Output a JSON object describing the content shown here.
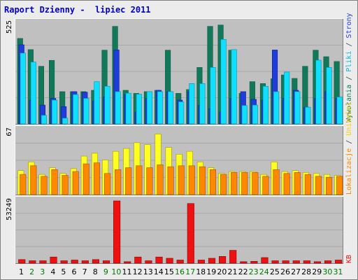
{
  "title": "Raport Dzienny -  lipiec 2011",
  "colors": {
    "background": "#ececec",
    "panel": "#c0c0c0",
    "wizyty": "#11795a",
    "strony": "#1f3ddc",
    "pliki": "#10e0ff",
    "pliki_edge": "#0095b0",
    "lokalizacje": "#ff8800",
    "unikalni": "#ffff22",
    "kb": "#ee1111",
    "weekend_label": "#007700",
    "weekday_label": "#000000"
  },
  "chart_data": [
    {
      "type": "bar",
      "y_top_label": "525",
      "categories": [
        "1",
        "2",
        "3",
        "4",
        "5",
        "6",
        "7",
        "8",
        "9",
        "10",
        "11",
        "12",
        "13",
        "14",
        "15",
        "16",
        "17",
        "18",
        "19",
        "20",
        "21",
        "22",
        "23",
        "24",
        "25",
        "26",
        "27",
        "28",
        "29",
        "30",
        "31"
      ],
      "weekend_days": [
        "2",
        "3",
        "9",
        "10",
        "16",
        "17",
        "23",
        "24",
        "30",
        "31"
      ],
      "ylim": [
        0,
        525
      ],
      "right_labels": [
        {
          "text": "Wywołania",
          "color": "#11795a"
        },
        {
          "text": " / ",
          "color": "#444444"
        },
        {
          "text": "Pliki",
          "color": "#10b8d8"
        },
        {
          "text": " / ",
          "color": "#444444"
        },
        {
          "text": "Strony",
          "color": "#1f3ddc"
        }
      ],
      "series": [
        {
          "name": "Wywołania",
          "values": [
            445,
            387,
            300,
            331,
            168,
            168,
            168,
            175,
            384,
            508,
            175,
            159,
            168,
            175,
            384,
            159,
            179,
            294,
            508,
            515,
            384,
            159,
            220,
            210,
            235,
            255,
            237,
            300,
            384,
            350,
            325
          ]
        },
        {
          "name": "Strony",
          "values": [
            412,
            124,
            98,
            133,
            90,
            168,
            165,
            120,
            140,
            385,
            153,
            62,
            133,
            175,
            168,
            124,
            168,
            96,
            80,
            62,
            133,
            168,
            128,
            124,
            385,
            133,
            175,
            87,
            133,
            168,
            133
          ]
        },
        {
          "name": "Pliki",
          "values": [
            369,
            322,
            45,
            124,
            30,
            153,
            133,
            220,
            196,
            168,
            160,
            155,
            168,
            168,
            168,
            115,
            210,
            210,
            294,
            440,
            387,
            96,
            98,
            196,
            168,
            270,
            168,
            87,
            332,
            294,
            140
          ]
        }
      ]
    },
    {
      "type": "bar",
      "y_top_label": "67",
      "ylim": [
        0,
        67
      ],
      "right_labels": [
        {
          "text": "Lokalizacje",
          "color": "#ff8800"
        },
        {
          "text": " / ",
          "color": "#444444"
        },
        {
          "text": "Unikalni",
          "color": "#ffcc00"
        }
      ],
      "series": [
        {
          "name": "Unikalni",
          "values": [
            25,
            34,
            21,
            28,
            22,
            27,
            40,
            43,
            36,
            45,
            48,
            54,
            52,
            63,
            49,
            42,
            45,
            34,
            28,
            22,
            24,
            24,
            24,
            21,
            34,
            24,
            25,
            23,
            22,
            21,
            20
          ]
        },
        {
          "name": "Lokalizacje",
          "values": [
            21,
            30,
            19,
            26,
            20,
            24,
            32,
            33,
            22,
            26,
            28,
            30,
            28,
            31,
            29,
            30,
            30,
            29,
            26,
            21,
            23,
            23,
            23,
            19,
            26,
            22,
            23,
            21,
            19,
            18,
            19
          ]
        }
      ]
    },
    {
      "type": "bar",
      "y_top_label": "53249",
      "ylim": [
        0,
        53249
      ],
      "right_labels": [
        {
          "text": "KB",
          "color": "#ee1111"
        }
      ],
      "series": [
        {
          "name": "KB",
          "values": [
            3100,
            2100,
            2100,
            5300,
            2100,
            2700,
            2100,
            3100,
            2100,
            53249,
            1300,
            5300,
            2100,
            5300,
            4200,
            2700,
            51000,
            2700,
            4200,
            5800,
            11000,
            1300,
            1600,
            4800,
            2100,
            2100,
            2100,
            2100,
            1300,
            2100,
            2700
          ]
        }
      ]
    }
  ]
}
